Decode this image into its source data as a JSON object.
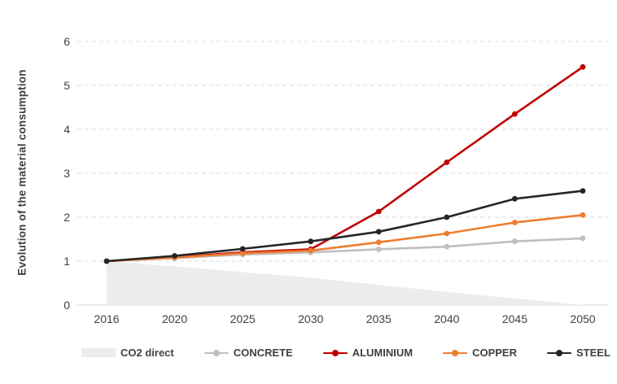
{
  "chart": {
    "y_axis_title": "Evolution of the material consumption",
    "y_ticks": [
      0,
      1,
      2,
      3,
      4,
      5,
      6
    ],
    "x_labels": [
      "2016",
      "2020",
      "2025",
      "2030",
      "2035",
      "2040",
      "2045",
      "2050"
    ]
  },
  "chart_data": {
    "type": "line",
    "title": "",
    "xlabel": "",
    "ylabel": "Evolution of the material consumption",
    "categories": [
      "2016",
      "2020",
      "2025",
      "2030",
      "2035",
      "2040",
      "2045",
      "2050"
    ],
    "ylim": [
      0,
      6
    ],
    "grid": "horizontal-dashed",
    "legend_position": "bottom",
    "series": [
      {
        "name": "CO2 direct",
        "type": "area",
        "color": "#ececec",
        "values": [
          1.0,
          0.88,
          0.75,
          0.62,
          0.46,
          0.3,
          0.15,
          0.0
        ]
      },
      {
        "name": "CONCRETE",
        "type": "line",
        "color": "#bfbfbf",
        "values": [
          1.0,
          1.07,
          1.15,
          1.2,
          1.27,
          1.33,
          1.45,
          1.52
        ]
      },
      {
        "name": "ALUMINIUM",
        "type": "line",
        "color": "#c00000",
        "values": [
          1.0,
          1.09,
          1.2,
          1.27,
          2.13,
          3.25,
          4.35,
          5.42
        ]
      },
      {
        "name": "COPPER",
        "type": "line",
        "color": "#ed7d31",
        "values": [
          1.0,
          1.08,
          1.18,
          1.24,
          1.43,
          1.63,
          1.88,
          2.05
        ]
      },
      {
        "name": "STEEL",
        "type": "line",
        "color": "#262626",
        "values": [
          1.0,
          1.12,
          1.28,
          1.45,
          1.67,
          2.0,
          2.42,
          2.6
        ]
      }
    ]
  },
  "colors": {
    "gridline": "#d9d9d9",
    "axis_line": "#d9d9d9",
    "tick_text": "#404040",
    "title_text": "#404040"
  }
}
